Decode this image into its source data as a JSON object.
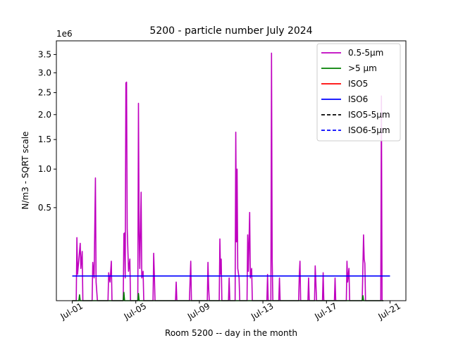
{
  "chart_data": {
    "type": "line",
    "title": "5200 - particle number July 2024",
    "xlabel": "Room 5200 -- day in the month",
    "ylabel": "N/m3 - SQRT scale",
    "y_scale": "sqrt",
    "y_offset_label": "1e6",
    "xlim": [
      "2024-06-30T00:00",
      "2024-07-22T00:00"
    ],
    "ylim": [
      0,
      3900000
    ],
    "x_ticks": [
      {
        "date": "2024-07-01",
        "label": "Jul-01"
      },
      {
        "date": "2024-07-05",
        "label": "Jul-05"
      },
      {
        "date": "2024-07-09",
        "label": "Jul-09"
      },
      {
        "date": "2024-07-13",
        "label": "Jul-13"
      },
      {
        "date": "2024-07-17",
        "label": "Jul-17"
      },
      {
        "date": "2024-07-21",
        "label": "Jul-21"
      }
    ],
    "y_ticks": [
      {
        "value": 500000,
        "label": "0.5"
      },
      {
        "value": 1000000,
        "label": "1.0"
      },
      {
        "value": 1500000,
        "label": "1.5"
      },
      {
        "value": 2000000,
        "label": "2.0"
      },
      {
        "value": 2500000,
        "label": "2.5"
      },
      {
        "value": 3000000,
        "label": "3.0"
      },
      {
        "value": 3500000,
        "label": "3.5"
      }
    ],
    "legend_position": "top-right",
    "legend": [
      {
        "label": "0.5-5µm",
        "color": "#bf00bf",
        "dash": "solid"
      },
      {
        "label": ">5 µm",
        "color": "#008000",
        "dash": "solid"
      },
      {
        "label": "ISO5",
        "color": "#ff0000",
        "dash": "solid"
      },
      {
        "label": "ISO6",
        "color": "#0000ff",
        "dash": "solid"
      },
      {
        "label": "ISO5-5µm",
        "color": "#000000",
        "dash": "dashed"
      },
      {
        "label": "ISO6-5µm",
        "color": "#0000ff",
        "dash": "dashed"
      }
    ],
    "series": [
      {
        "name": "0.5-5µm",
        "color": "#bf00bf",
        "points": [
          [
            "2024-07-01T00:00",
            0
          ],
          [
            "2024-07-01T06:00",
            0
          ],
          [
            "2024-07-01T07:00",
            230000
          ],
          [
            "2024-07-01T08:00",
            40000
          ],
          [
            "2024-07-01T10:00",
            100000
          ],
          [
            "2024-07-01T12:00",
            190000
          ],
          [
            "2024-07-01T13:00",
            60000
          ],
          [
            "2024-07-01T15:00",
            140000
          ],
          [
            "2024-07-01T16:00",
            0
          ],
          [
            "2024-07-02T00:00",
            0
          ],
          [
            "2024-07-02T06:00",
            0
          ],
          [
            "2024-07-02T07:00",
            85000
          ],
          [
            "2024-07-02T09:00",
            30000
          ],
          [
            "2024-07-02T11:00",
            870000
          ],
          [
            "2024-07-02T12:00",
            20000
          ],
          [
            "2024-07-02T14:00",
            0
          ],
          [
            "2024-07-03T00:00",
            0
          ],
          [
            "2024-07-03T06:00",
            0
          ],
          [
            "2024-07-03T07:00",
            45000
          ],
          [
            "2024-07-03T09:00",
            20000
          ],
          [
            "2024-07-03T11:00",
            90000
          ],
          [
            "2024-07-03T12:00",
            0
          ],
          [
            "2024-07-04T00:00",
            0
          ],
          [
            "2024-07-04T05:00",
            0
          ],
          [
            "2024-07-04T06:00",
            260000
          ],
          [
            "2024-07-04T07:00",
            265000
          ],
          [
            "2024-07-04T08:00",
            30000
          ],
          [
            "2024-07-04T09:00",
            2740000
          ],
          [
            "2024-07-04T10:00",
            2760000
          ],
          [
            "2024-07-04T11:00",
            300000
          ],
          [
            "2024-07-04T13:00",
            50000
          ],
          [
            "2024-07-04T15:00",
            100000
          ],
          [
            "2024-07-04T16:00",
            0
          ],
          [
            "2024-07-05T00:00",
            0
          ],
          [
            "2024-07-05T03:00",
            0
          ],
          [
            "2024-07-05T04:00",
            2250000
          ],
          [
            "2024-07-05T05:00",
            280000
          ],
          [
            "2024-07-05T06:00",
            60000
          ],
          [
            "2024-07-05T08:00",
            680000
          ],
          [
            "2024-07-05T09:00",
            30000
          ],
          [
            "2024-07-05T11:00",
            50000
          ],
          [
            "2024-07-05T12:00",
            0
          ],
          [
            "2024-07-06T00:00",
            0
          ],
          [
            "2024-07-06T02:00",
            0
          ],
          [
            "2024-07-06T03:00",
            130000
          ],
          [
            "2024-07-06T04:00",
            40000
          ],
          [
            "2024-07-06T05:00",
            0
          ],
          [
            "2024-07-07T12:00",
            0
          ],
          [
            "2024-07-07T13:00",
            20000
          ],
          [
            "2024-07-07T14:00",
            0
          ],
          [
            "2024-07-08T09:00",
            0
          ],
          [
            "2024-07-08T10:00",
            25000
          ],
          [
            "2024-07-08T11:00",
            90000
          ],
          [
            "2024-07-08T12:00",
            0
          ],
          [
            "2024-07-09T12:00",
            0
          ],
          [
            "2024-07-09T13:00",
            85000
          ],
          [
            "2024-07-09T14:00",
            10000
          ],
          [
            "2024-07-09T15:00",
            0
          ],
          [
            "2024-07-10T06:00",
            0
          ],
          [
            "2024-07-10T07:00",
            220000
          ],
          [
            "2024-07-10T08:00",
            40000
          ],
          [
            "2024-07-10T09:00",
            100000
          ],
          [
            "2024-07-10T10:00",
            0
          ],
          [
            "2024-07-10T20:00",
            0
          ],
          [
            "2024-07-10T21:00",
            30000
          ],
          [
            "2024-07-10T22:00",
            0
          ],
          [
            "2024-07-11T06:00",
            0
          ],
          [
            "2024-07-11T07:00",
            1640000
          ],
          [
            "2024-07-11T08:00",
            200000
          ],
          [
            "2024-07-11T09:00",
            1000000
          ],
          [
            "2024-07-11T10:00",
            60000
          ],
          [
            "2024-07-11T12:00",
            30000
          ],
          [
            "2024-07-11T13:00",
            0
          ],
          [
            "2024-07-12T00:00",
            0
          ],
          [
            "2024-07-12T01:00",
            250000
          ],
          [
            "2024-07-12T02:00",
            50000
          ],
          [
            "2024-07-12T04:00",
            450000
          ],
          [
            "2024-07-12T05:00",
            30000
          ],
          [
            "2024-07-12T07:00",
            60000
          ],
          [
            "2024-07-12T08:00",
            0
          ],
          [
            "2024-07-13T06:00",
            0
          ],
          [
            "2024-07-13T07:00",
            40000
          ],
          [
            "2024-07-13T08:00",
            0
          ],
          [
            "2024-07-13T12:00",
            0
          ],
          [
            "2024-07-13T13:00",
            3540000
          ],
          [
            "2024-07-13T14:00",
            100000
          ],
          [
            "2024-07-13T15:00",
            0
          ],
          [
            "2024-07-14T00:00",
            0
          ],
          [
            "2024-07-14T01:00",
            30000
          ],
          [
            "2024-07-14T02:00",
            0
          ],
          [
            "2024-07-15T06:00",
            0
          ],
          [
            "2024-07-15T07:00",
            40000
          ],
          [
            "2024-07-15T08:00",
            90000
          ],
          [
            "2024-07-15T09:00",
            0
          ],
          [
            "2024-07-15T20:00",
            0
          ],
          [
            "2024-07-15T21:00",
            30000
          ],
          [
            "2024-07-15T22:00",
            0
          ],
          [
            "2024-07-16T06:00",
            0
          ],
          [
            "2024-07-16T07:00",
            70000
          ],
          [
            "2024-07-16T08:00",
            20000
          ],
          [
            "2024-07-16T09:00",
            0
          ],
          [
            "2024-07-16T18:00",
            0
          ],
          [
            "2024-07-16T19:00",
            45000
          ],
          [
            "2024-07-16T20:00",
            0
          ],
          [
            "2024-07-17T12:00",
            0
          ],
          [
            "2024-07-17T13:00",
            30000
          ],
          [
            "2024-07-17T14:00",
            0
          ],
          [
            "2024-07-18T06:00",
            0
          ],
          [
            "2024-07-18T07:00",
            90000
          ],
          [
            "2024-07-18T08:00",
            20000
          ],
          [
            "2024-07-18T10:00",
            60000
          ],
          [
            "2024-07-18T11:00",
            0
          ],
          [
            "2024-07-19T06:00",
            0
          ],
          [
            "2024-07-19T07:00",
            60000
          ],
          [
            "2024-07-19T08:00",
            250000
          ],
          [
            "2024-07-19T09:00",
            100000
          ],
          [
            "2024-07-19T10:00",
            80000
          ],
          [
            "2024-07-19T11:00",
            0
          ],
          [
            "2024-07-20T10:00",
            0
          ],
          [
            "2024-07-20T11:00",
            2420000
          ],
          [
            "2024-07-20T12:00",
            0
          ],
          [
            "2024-07-20T14:00",
            0
          ]
        ]
      },
      {
        "name": ">5 µm",
        "color": "#008000",
        "points": [
          [
            "2024-07-01T00:00",
            0
          ],
          [
            "2024-07-01T10:00",
            0
          ],
          [
            "2024-07-01T11:00",
            2000
          ],
          [
            "2024-07-01T12:00",
            0
          ],
          [
            "2024-07-04T05:00",
            0
          ],
          [
            "2024-07-04T06:00",
            4000
          ],
          [
            "2024-07-04T07:00",
            0
          ],
          [
            "2024-07-05T03:00",
            0
          ],
          [
            "2024-07-05T04:00",
            3000
          ],
          [
            "2024-07-05T05:00",
            0
          ],
          [
            "2024-07-19T06:00",
            0
          ],
          [
            "2024-07-19T07:00",
            1500
          ],
          [
            "2024-07-19T08:00",
            0
          ],
          [
            "2024-07-20T14:00",
            0
          ]
        ]
      },
      {
        "name": "ISO6",
        "color": "#0000ff",
        "points": [
          [
            "2024-07-01T00:00",
            35200
          ],
          [
            "2024-07-21T00:00",
            35200
          ]
        ]
      }
    ]
  }
}
